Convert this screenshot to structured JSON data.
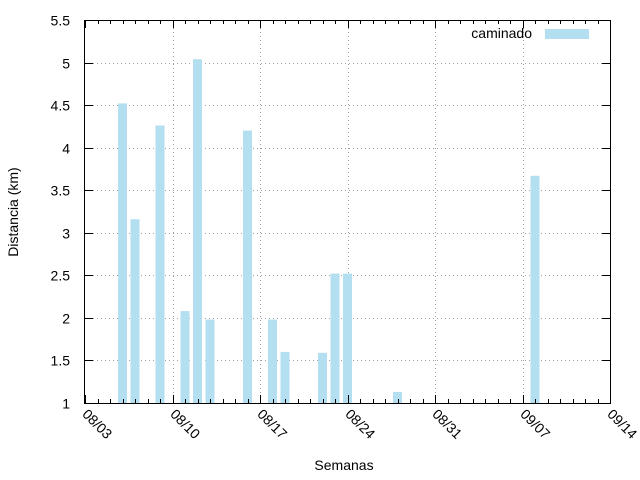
{
  "chart_data": {
    "type": "bar",
    "xlabel": "Semanas",
    "ylabel": "Distancia (km)",
    "ylim": [
      1,
      5.5
    ],
    "xlim": [
      "2025-08-03",
      "2025-09-14"
    ],
    "grid": true,
    "legend_position": "top-right",
    "x_tick_labels": [
      "08/03",
      "08/10",
      "08/17",
      "08/24",
      "08/31",
      "09/07",
      "09/14"
    ],
    "y_tick_labels": [
      "1",
      "1.5",
      "2",
      "2.5",
      "3",
      "3.5",
      "4",
      "4.5",
      "5",
      "5.5"
    ],
    "series": [
      {
        "name": "caminado",
        "color": "#b3dff1",
        "x": [
          "2025-08-06",
          "2025-08-07",
          "2025-08-09",
          "2025-08-11",
          "2025-08-12",
          "2025-08-13",
          "2025-08-16",
          "2025-08-18",
          "2025-08-19",
          "2025-08-22",
          "2025-08-23",
          "2025-08-24",
          "2025-08-28",
          "2025-09-08"
        ],
        "values": [
          4.52,
          3.16,
          4.26,
          2.08,
          5.04,
          1.98,
          4.2,
          1.98,
          1.6,
          1.59,
          2.52,
          2.52,
          1.13,
          3.67
        ]
      }
    ]
  }
}
